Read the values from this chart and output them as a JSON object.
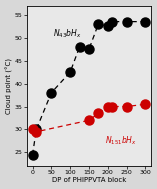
{
  "black_x": [
    0,
    10,
    50,
    100,
    125,
    150,
    175,
    200,
    210,
    250,
    300
  ],
  "black_y": [
    24.5,
    30.0,
    38.0,
    42.5,
    48.0,
    47.5,
    53.0,
    52.5,
    53.5,
    53.5,
    53.5
  ],
  "red_x": [
    0,
    10,
    150,
    175,
    200,
    210,
    250,
    300
  ],
  "red_y": [
    30.0,
    29.5,
    32.0,
    33.5,
    35.0,
    35.0,
    35.0,
    35.5
  ],
  "xlabel": "DP of PHIPPVTA block",
  "ylabel": "Cloud point (°C)",
  "xlim": [
    -15,
    315
  ],
  "ylim": [
    22,
    57
  ],
  "yticks": [
    25,
    30,
    35,
    40,
    45,
    50,
    55
  ],
  "xticks": [
    0,
    50,
    100,
    150,
    200,
    250,
    300
  ],
  "black_ann_x": 55,
  "black_ann_y": 49.5,
  "red_ann_x": 192,
  "red_ann_y": 28.8,
  "bg_color": "#d8d8d8",
  "plot_bg": "#e8e8e8"
}
